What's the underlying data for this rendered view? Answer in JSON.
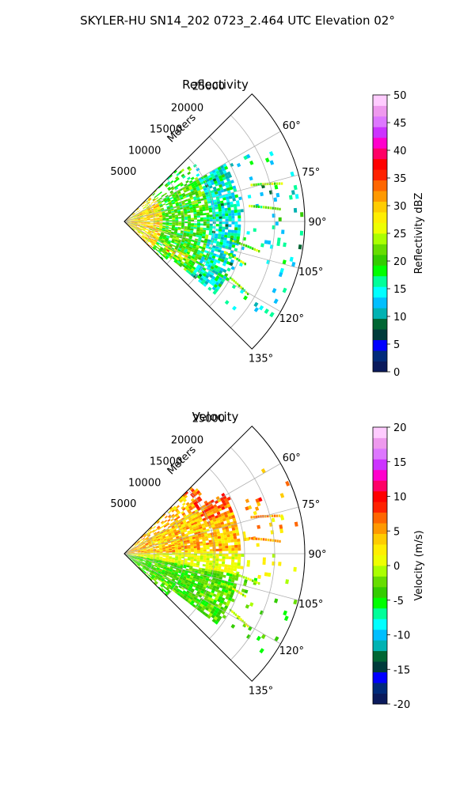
{
  "figure": {
    "suptitle": "SKYLER-HU  SN14_202  0723_2.464 UTC Elevation 02°"
  },
  "chart_data": [
    {
      "type": "polar-ppi",
      "title": "Reflectivity",
      "range_label": "Meters",
      "range_ticks": [
        "5000",
        "10000",
        "15000",
        "20000",
        "25000"
      ],
      "range_values": [
        5000,
        10000,
        15000,
        20000,
        25000
      ],
      "rmax": 30000,
      "theta_range_deg": [
        45,
        135
      ],
      "theta_ticks": [
        "60°",
        "75°",
        "90°",
        "105°",
        "120°",
        "135°"
      ],
      "theta_values": [
        60,
        75,
        90,
        105,
        120,
        135
      ],
      "grid": true,
      "colorbar": {
        "label": "Reflectivity dBZ",
        "min": 0,
        "max": 50,
        "ticks": [
          "0",
          "5",
          "10",
          "15",
          "20",
          "25",
          "30",
          "35",
          "40",
          "45",
          "50"
        ],
        "colors": [
          "#0a1a5c",
          "#002a7a",
          "#0000ff",
          "#003b3b",
          "#006633",
          "#00b2b2",
          "#00bfff",
          "#00ffff",
          "#00ff99",
          "#00ff00",
          "#33cc00",
          "#66dd00",
          "#aaff00",
          "#eeff00",
          "#ffee00",
          "#ffcc00",
          "#ff9900",
          "#ff6600",
          "#ff2200",
          "#ff0000",
          "#ff0066",
          "#ff00cc",
          "#cc33ff",
          "#dd77ff",
          "#ee99ee",
          "#ffccff"
        ]
      },
      "field": "reflectivity"
    },
    {
      "type": "polar-ppi",
      "title": "Velocity",
      "range_label": "Meters",
      "range_ticks": [
        "5000",
        "10000",
        "15000",
        "20000",
        "25000"
      ],
      "range_values": [
        5000,
        10000,
        15000,
        20000,
        25000
      ],
      "rmax": 30000,
      "theta_range_deg": [
        45,
        135
      ],
      "theta_ticks": [
        "60°",
        "75°",
        "90°",
        "105°",
        "120°",
        "135°"
      ],
      "theta_values": [
        60,
        75,
        90,
        105,
        120,
        135
      ],
      "grid": true,
      "colorbar": {
        "label": "Velocity (m/s)",
        "min": -20,
        "max": 20,
        "ticks": [
          "-20",
          "-15",
          "-10",
          "-5",
          "0",
          "5",
          "10",
          "15",
          "20"
        ],
        "colors": [
          "#0a1a5c",
          "#002a7a",
          "#0000ff",
          "#003b3b",
          "#006633",
          "#00b2b2",
          "#00bfff",
          "#00ffff",
          "#00ff99",
          "#00ff00",
          "#33cc00",
          "#66dd00",
          "#aaff00",
          "#eeff00",
          "#ffee00",
          "#ffcc00",
          "#ff9900",
          "#ff6600",
          "#ff2200",
          "#ff0000",
          "#ff0066",
          "#ff00cc",
          "#cc33ff",
          "#dd77ff",
          "#ee99ee",
          "#ffccff"
        ]
      },
      "field": "velocity"
    }
  ]
}
